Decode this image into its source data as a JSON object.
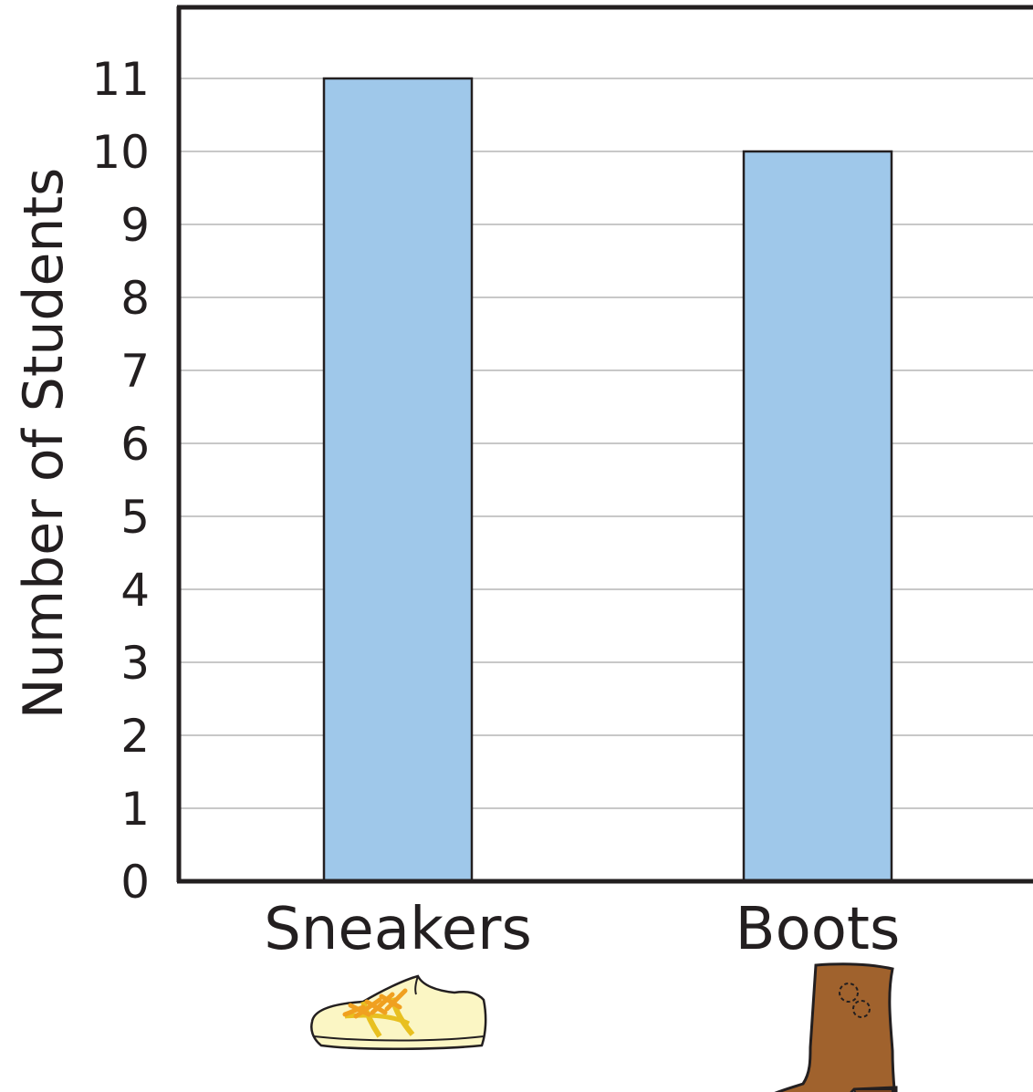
{
  "chart_data": {
    "type": "bar",
    "categories": [
      "Sneakers",
      "Boots"
    ],
    "values": [
      11,
      10
    ],
    "title": "",
    "xlabel": "",
    "ylabel": "Number of Students",
    "ylim": [
      0,
      11
    ],
    "yticks": [
      "0",
      "1",
      "2",
      "3",
      "4",
      "5",
      "6",
      "7",
      "8",
      "9",
      "10",
      "11"
    ],
    "grid": true,
    "category_icons": [
      "sneaker-icon",
      "cowboy-boot-icon"
    ],
    "colors": {
      "bar_fill": "#9fc8ea",
      "bar_stroke": "#231f20",
      "grid": "#c8c8c8",
      "axis": "#231f20",
      "sneaker": "#fbf6c4",
      "sneaker_lace": "#f0a020",
      "boot": "#a0622d"
    }
  }
}
